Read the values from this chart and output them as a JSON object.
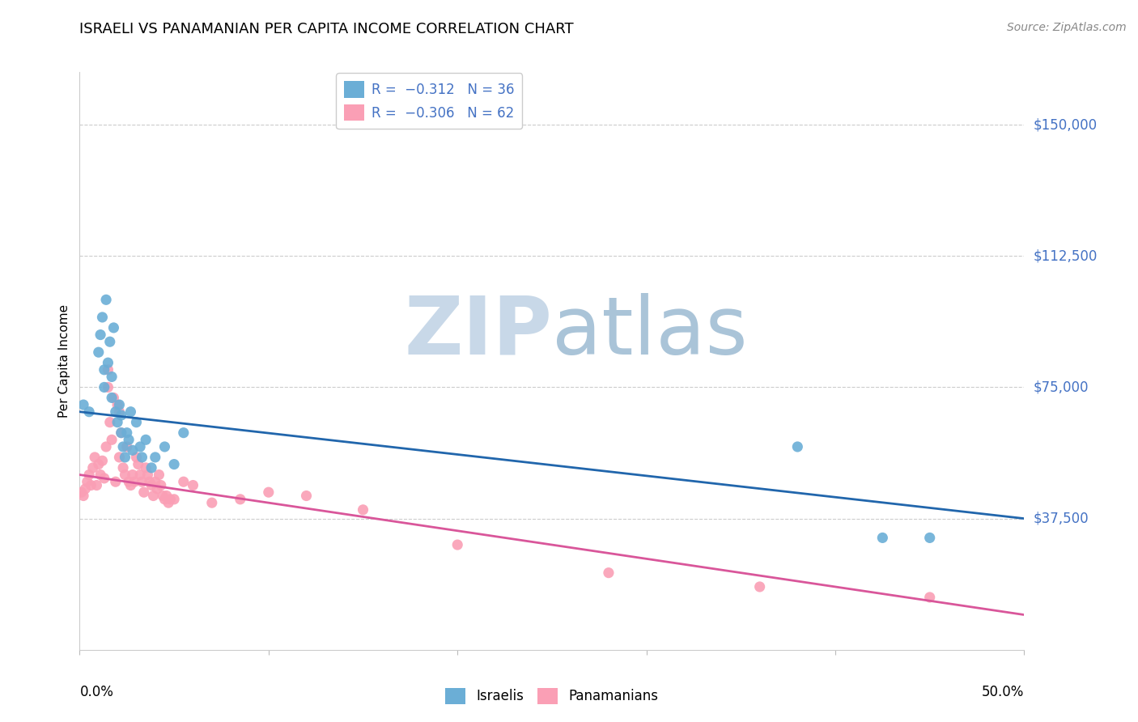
{
  "title": "ISRAELI VS PANAMANIAN PER CAPITA INCOME CORRELATION CHART",
  "source": "Source: ZipAtlas.com",
  "ylabel": "Per Capita Income",
  "yticks": [
    0,
    37500,
    75000,
    112500,
    150000
  ],
  "ytick_labels": [
    "",
    "$37,500",
    "$75,000",
    "$112,500",
    "$150,000"
  ],
  "xlim": [
    0.0,
    0.5
  ],
  "ylim": [
    0,
    165000
  ],
  "color_israeli": "#6baed6",
  "color_panamanian": "#fa9fb5",
  "color_trendline_israeli": "#2166ac",
  "color_trendline_panamanian": "#d9569a",
  "watermark_zip": "ZIP",
  "watermark_atlas": "atlas",
  "watermark_color_zip": "#c8d8e8",
  "watermark_color_atlas": "#aac4d8",
  "trendline_israeli_y0": 68000,
  "trendline_israeli_y1": 37500,
  "trendline_panamanian_y0": 50000,
  "trendline_panamanian_y1": 10000,
  "israeli_x": [
    0.002,
    0.005,
    0.01,
    0.011,
    0.012,
    0.013,
    0.013,
    0.014,
    0.015,
    0.016,
    0.017,
    0.017,
    0.018,
    0.019,
    0.02,
    0.021,
    0.022,
    0.022,
    0.023,
    0.024,
    0.025,
    0.026,
    0.027,
    0.028,
    0.03,
    0.032,
    0.033,
    0.035,
    0.038,
    0.04,
    0.045,
    0.05,
    0.055,
    0.38,
    0.425,
    0.45
  ],
  "israeli_y": [
    70000,
    68000,
    85000,
    90000,
    95000,
    80000,
    75000,
    100000,
    82000,
    88000,
    72000,
    78000,
    92000,
    68000,
    65000,
    70000,
    62000,
    67000,
    58000,
    55000,
    62000,
    60000,
    68000,
    57000,
    65000,
    58000,
    55000,
    60000,
    52000,
    55000,
    58000,
    53000,
    62000,
    58000,
    32000,
    32000
  ],
  "panamanian_x": [
    0.001,
    0.002,
    0.003,
    0.004,
    0.005,
    0.006,
    0.007,
    0.008,
    0.009,
    0.01,
    0.011,
    0.012,
    0.013,
    0.014,
    0.015,
    0.015,
    0.016,
    0.017,
    0.018,
    0.019,
    0.02,
    0.021,
    0.021,
    0.022,
    0.023,
    0.024,
    0.025,
    0.026,
    0.027,
    0.028,
    0.029,
    0.03,
    0.031,
    0.032,
    0.033,
    0.034,
    0.035,
    0.036,
    0.037,
    0.038,
    0.039,
    0.04,
    0.041,
    0.042,
    0.043,
    0.044,
    0.045,
    0.046,
    0.047,
    0.048,
    0.05,
    0.055,
    0.06,
    0.07,
    0.085,
    0.1,
    0.12,
    0.15,
    0.2,
    0.28,
    0.36,
    0.45
  ],
  "panamanian_y": [
    45000,
    44000,
    46000,
    48000,
    50000,
    47000,
    52000,
    55000,
    47000,
    53000,
    50000,
    54000,
    49000,
    58000,
    75000,
    80000,
    65000,
    60000,
    72000,
    48000,
    70000,
    68000,
    55000,
    62000,
    52000,
    50000,
    58000,
    48000,
    47000,
    50000,
    48000,
    55000,
    53000,
    50000,
    48000,
    45000,
    52000,
    50000,
    48000,
    47000,
    44000,
    48000,
    46000,
    50000,
    47000,
    44000,
    43000,
    44000,
    42000,
    43000,
    43000,
    48000,
    47000,
    42000,
    43000,
    45000,
    44000,
    40000,
    30000,
    22000,
    18000,
    15000
  ]
}
